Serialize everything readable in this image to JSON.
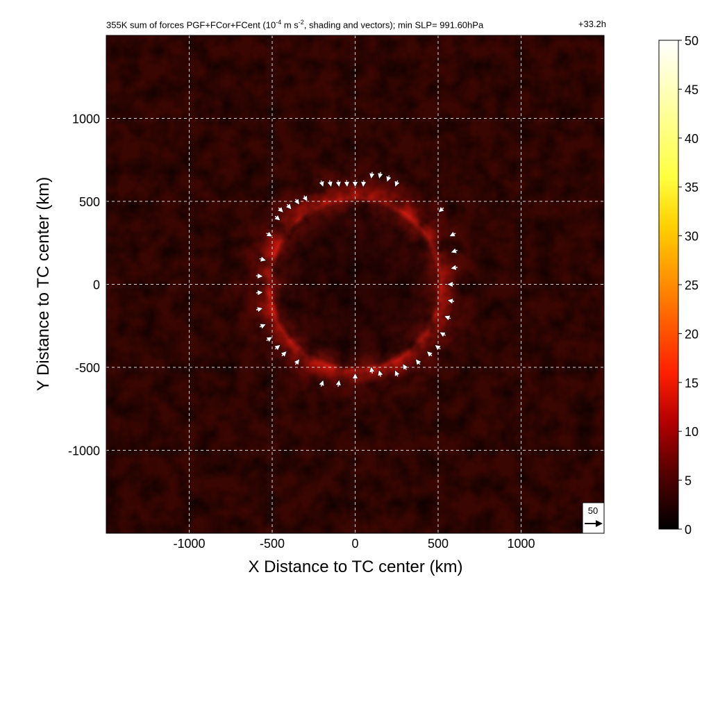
{
  "title": {
    "main": "355K sum of forces PGF+FCor+FCent (10",
    "sup1": "-4",
    "mid": " m s",
    "sup2": "-2",
    "tail": ", shading and vectors); min SLP= 991.60hPa",
    "time": "+33.2h"
  },
  "colors": {
    "background": "#ffffff",
    "field_base": "#3a0602",
    "ring": "#c81a10",
    "vectors": "#ffffff",
    "grid": "#d8d8d8"
  },
  "chart_data": {
    "type": "heatmap",
    "description_variable": "sum of forces magnitude",
    "units": "10^-4 m s^-2",
    "xlabel": "X Distance to TC center (km)",
    "ylabel": "Y Distance to TC center (km)",
    "xlim": [
      -1500,
      1500
    ],
    "ylim": [
      -1500,
      1500
    ],
    "xticks": [
      -1000,
      -500,
      0,
      500,
      1000
    ],
    "yticks": [
      -1000,
      -500,
      0,
      500,
      1000
    ],
    "grid": true,
    "colorbar": {
      "min": 0,
      "max": 50,
      "ticks": [
        0,
        5,
        10,
        15,
        20,
        25,
        30,
        35,
        40,
        45,
        50
      ],
      "colormap": [
        "#000000",
        "#5a0000",
        "#b40000",
        "#ff2000",
        "#ff8000",
        "#ffd000",
        "#ffff40",
        "#ffffa0",
        "#ffffff"
      ]
    },
    "field_features": {
      "ring_radius_km": 520,
      "ring_peak_value": 14,
      "inner_region_value": 3,
      "outer_background_value": 3
    },
    "reference_vector": {
      "label": "50",
      "value": 50
    },
    "vectors_km": [
      [
        -200,
        610
      ],
      [
        -150,
        610
      ],
      [
        -100,
        610
      ],
      [
        -50,
        610
      ],
      [
        0,
        610
      ],
      [
        50,
        610
      ],
      [
        100,
        660
      ],
      [
        150,
        660
      ],
      [
        200,
        640
      ],
      [
        250,
        610
      ],
      [
        -300,
        520
      ],
      [
        -350,
        500
      ],
      [
        -400,
        470
      ],
      [
        -450,
        450
      ],
      [
        -470,
        400
      ],
      [
        -520,
        300
      ],
      [
        -560,
        150
      ],
      [
        -580,
        50
      ],
      [
        -580,
        -50
      ],
      [
        -580,
        -150
      ],
      [
        -560,
        -250
      ],
      [
        -520,
        -330
      ],
      [
        -470,
        -380
      ],
      [
        -430,
        -420
      ],
      [
        -350,
        -470
      ],
      [
        -200,
        -600
      ],
      [
        -100,
        -600
      ],
      [
        0,
        -560
      ],
      [
        100,
        -520
      ],
      [
        150,
        -540
      ],
      [
        250,
        -540
      ],
      [
        300,
        -500
      ],
      [
        380,
        -470
      ],
      [
        450,
        -420
      ],
      [
        500,
        -380
      ],
      [
        530,
        -300
      ],
      [
        560,
        -200
      ],
      [
        580,
        -100
      ],
      [
        580,
        0
      ],
      [
        600,
        100
      ],
      [
        600,
        200
      ],
      [
        590,
        300
      ],
      [
        520,
        450
      ]
    ]
  },
  "reference_box": {
    "label": "50"
  }
}
